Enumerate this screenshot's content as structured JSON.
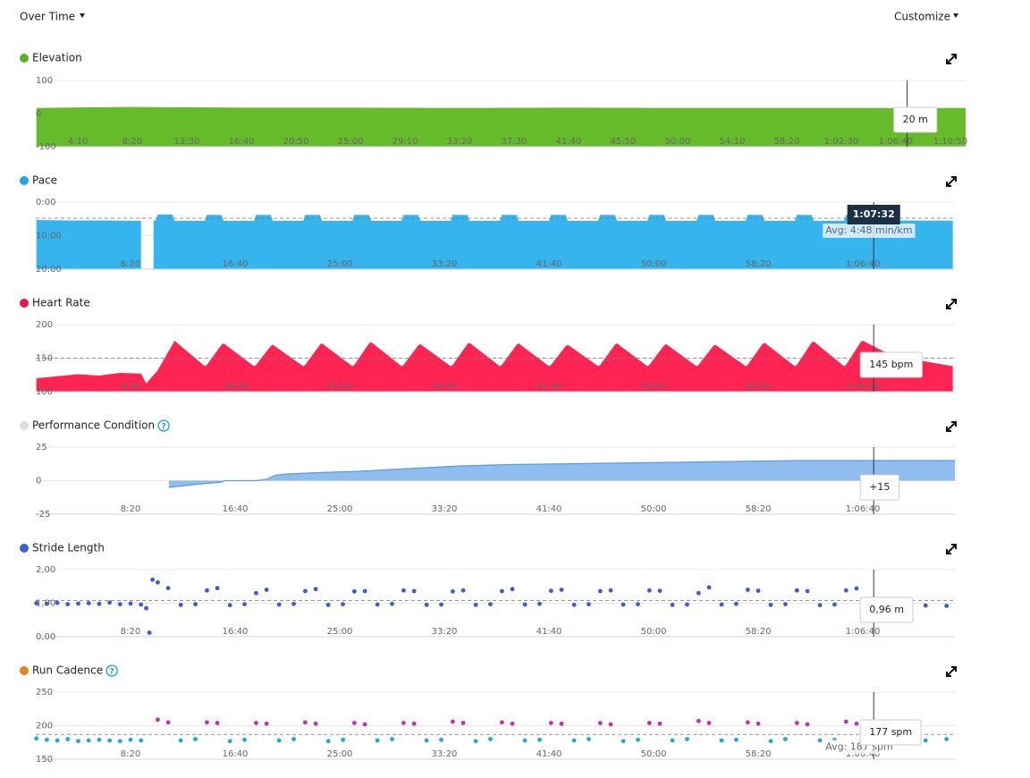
{
  "header": {
    "view": "Over Time",
    "customize": "Customize"
  },
  "hover": {
    "value": 4052,
    "label": "1:07:32"
  },
  "chart_data": [
    {
      "type": "area",
      "title": "Elevation",
      "legend_color": "#5bb02b",
      "color": "#66bb2a",
      "fill": "bottom",
      "tooltip": "20 m",
      "x": [
        60,
        300,
        500,
        1000,
        1500,
        2000,
        2500,
        3000,
        3500,
        4000,
        4320
      ],
      "values": [
        17,
        19,
        20,
        18,
        18,
        17,
        18,
        17,
        17,
        17,
        17
      ],
      "xlim": [
        57,
        4320
      ],
      "ylim": [
        -100,
        100
      ],
      "yticks": [
        -100,
        0,
        100
      ],
      "xticks": [
        {
          "value": 250,
          "label": "4:10"
        },
        {
          "value": 500,
          "label": "8:20"
        },
        {
          "value": 750,
          "label": "12:30"
        },
        {
          "value": 1000,
          "label": "16:40"
        },
        {
          "value": 1250,
          "label": "20:50"
        },
        {
          "value": 1500,
          "label": "25:00"
        },
        {
          "value": 1750,
          "label": "29:10"
        },
        {
          "value": 2000,
          "label": "33:20"
        },
        {
          "value": 2250,
          "label": "37:30"
        },
        {
          "value": 2500,
          "label": "41:40"
        },
        {
          "value": 2750,
          "label": "45:50"
        },
        {
          "value": 3000,
          "label": "50:00"
        },
        {
          "value": 3250,
          "label": "54:10"
        },
        {
          "value": 3500,
          "label": "58:20"
        },
        {
          "value": 3750,
          "label": "1:02:30"
        },
        {
          "value": 4000,
          "label": "1:06:40"
        },
        {
          "value": 4250,
          "label": "1:10:50"
        }
      ]
    },
    {
      "type": "area",
      "title": "Pace",
      "legend_color": "#1fa9e1",
      "color": "#36b4ee",
      "fill": "bottom",
      "inverted": true,
      "average": 288,
      "average_label": "Avg: 4:48 min/km",
      "x": [
        50,
        150,
        250,
        350,
        450,
        550,
        575,
        610,
        620,
        630,
        700,
        710,
        855,
        865,
        935,
        945,
        1090,
        1100,
        1170,
        1180,
        1325,
        1335,
        1405,
        1415,
        1560,
        1570,
        1640,
        1650,
        1795,
        1805,
        1875,
        1885,
        2030,
        2040,
        2110,
        2120,
        2265,
        2275,
        2345,
        2355,
        2500,
        2510,
        2580,
        2590,
        2735,
        2745,
        2815,
        2825,
        2970,
        2980,
        3050,
        3060,
        3205,
        3215,
        3285,
        3295,
        3440,
        3450,
        3520,
        3530,
        3675,
        3685,
        3755,
        3765,
        3910,
        3920,
        3990,
        4000,
        4100,
        4200,
        4300,
        4430
      ],
      "values": [
        320,
        325,
        330,
        328,
        332,
        335,
        null,
        330,
        330,
        220,
        222,
        335,
        335,
        228,
        230,
        335,
        335,
        228,
        230,
        335,
        335,
        228,
        230,
        335,
        335,
        228,
        230,
        335,
        335,
        228,
        230,
        335,
        335,
        228,
        230,
        335,
        335,
        228,
        230,
        335,
        335,
        228,
        230,
        335,
        335,
        228,
        230,
        335,
        335,
        228,
        230,
        335,
        335,
        228,
        230,
        335,
        335,
        228,
        230,
        335,
        335,
        228,
        230,
        335,
        335,
        228,
        230,
        335,
        330,
        330,
        332,
        332
      ],
      "xlim": [
        47,
        4440
      ],
      "ylim": [
        0,
        1200
      ],
      "yticks": [
        {
          "value": 0,
          "label": "0:00"
        },
        {
          "value": 600,
          "label": "10:00"
        },
        {
          "value": 1200,
          "label": "20:00"
        }
      ],
      "xticks": [
        {
          "value": 500,
          "label": "8:20"
        },
        {
          "value": 1000,
          "label": "16:40"
        },
        {
          "value": 1500,
          "label": "25:00"
        },
        {
          "value": 2000,
          "label": "33:20"
        },
        {
          "value": 2500,
          "label": "41:40"
        },
        {
          "value": 3000,
          "label": "50:00"
        },
        {
          "value": 3500,
          "label": "58:20"
        },
        {
          "value": 4000,
          "label": "1:06:40"
        }
      ]
    },
    {
      "type": "area",
      "title": "Heart Rate",
      "legend_color": "#e8194a",
      "color": "#ff2452",
      "fill": "bottom",
      "tooltip": "145 bpm",
      "average": 150,
      "x": [
        50,
        150,
        250,
        350,
        450,
        550,
        575,
        610,
        620,
        630,
        700,
        710,
        855,
        865,
        935,
        945,
        1090,
        1100,
        1170,
        1180,
        1325,
        1335,
        1405,
        1415,
        1560,
        1570,
        1640,
        1650,
        1795,
        1805,
        1875,
        1885,
        2030,
        2040,
        2110,
        2120,
        2265,
        2275,
        2345,
        2355,
        2500,
        2510,
        2580,
        2590,
        2735,
        2745,
        2815,
        2825,
        2970,
        2980,
        3050,
        3060,
        3205,
        3215,
        3285,
        3295,
        3440,
        3450,
        3520,
        3530,
        3675,
        3685,
        3755,
        3765,
        3910,
        3920,
        3990,
        4000,
        4100,
        4200,
        4300,
        4430
      ],
      "values": [
        120,
        123,
        126,
        124,
        128,
        127,
        112,
        125,
        128,
        132,
        170,
        176,
        138,
        140,
        170,
        172,
        138,
        140,
        168,
        170,
        138,
        140,
        170,
        172,
        138,
        140,
        172,
        174,
        138,
        140,
        169,
        171,
        138,
        140,
        171,
        173,
        138,
        140,
        170,
        172,
        138,
        140,
        168,
        170,
        138,
        140,
        170,
        172,
        138,
        140,
        169,
        171,
        138,
        140,
        168,
        170,
        138,
        140,
        171,
        173,
        138,
        140,
        173,
        175,
        138,
        140,
        174,
        176,
        160,
        150,
        145,
        138
      ],
      "xlim": [
        47,
        4440
      ],
      "ylim": [
        100,
        200
      ],
      "yticks": [
        100,
        150,
        200
      ],
      "xticks": [
        {
          "value": 500,
          "label": "8:20"
        },
        {
          "value": 1000,
          "label": "16:40"
        },
        {
          "value": 1500,
          "label": "25:00"
        },
        {
          "value": 2000,
          "label": "33:20"
        },
        {
          "value": 2500,
          "label": "41:40"
        },
        {
          "value": 3000,
          "label": "50:00"
        },
        {
          "value": 3500,
          "label": "58:20"
        },
        {
          "value": 4000,
          "label": "1:06:40"
        }
      ]
    },
    {
      "type": "area",
      "title": "Performance Condition",
      "help": "?",
      "legend_color": "#dddddd",
      "color": "#8ebdee",
      "line_color": "#5a9be0",
      "fill": "zero",
      "tooltip": "+15",
      "x": [
        683,
        800,
        937,
        950,
        1100,
        1150,
        1192,
        1250,
        1396,
        1595,
        1829,
        2083,
        2317,
        2783,
        3229,
        3695,
        4440
      ],
      "values": [
        -5,
        -3,
        -1,
        0,
        0,
        1,
        4,
        5,
        6,
        7,
        9,
        11,
        12,
        13,
        14,
        15,
        15
      ],
      "xlim": [
        47,
        4440
      ],
      "ylim": [
        -25,
        25
      ],
      "yticks": [
        -25,
        0,
        25
      ],
      "xticks": [
        {
          "value": 500,
          "label": "8:20"
        },
        {
          "value": 1000,
          "label": "16:40"
        },
        {
          "value": 1500,
          "label": "25:00"
        },
        {
          "value": 2000,
          "label": "33:20"
        },
        {
          "value": 2500,
          "label": "41:40"
        },
        {
          "value": 3000,
          "label": "50:00"
        },
        {
          "value": 3500,
          "label": "58:20"
        },
        {
          "value": 4000,
          "label": "1:06:40"
        }
      ]
    },
    {
      "type": "scatter",
      "title": "Stride Length",
      "legend_color": "#3c5fd8",
      "color": "#3a5dd6",
      "tooltip": "0,96 m",
      "average": 1.08,
      "x": [
        50,
        100,
        150,
        200,
        250,
        300,
        350,
        400,
        450,
        500,
        550,
        575,
        590,
        605,
        630,
        680,
        740,
        810,
        865,
        915,
        975,
        1045,
        1100,
        1150,
        1210,
        1280,
        1335,
        1385,
        1445,
        1515,
        1570,
        1620,
        1680,
        1750,
        1805,
        1855,
        1915,
        1985,
        2040,
        2090,
        2150,
        2220,
        2275,
        2325,
        2385,
        2455,
        2510,
        2560,
        2620,
        2690,
        2745,
        2795,
        2855,
        2925,
        2980,
        3030,
        3090,
        3160,
        3215,
        3265,
        3325,
        3395,
        3450,
        3500,
        3560,
        3630,
        3685,
        3735,
        3795,
        3865,
        3920,
        3970,
        4030,
        4100,
        4200,
        4300,
        4400
      ],
      "values": [
        1.0,
        0.98,
        1.01,
        0.97,
        0.99,
        1.0,
        0.98,
        1.02,
        0.97,
        0.99,
        0.96,
        0.85,
        0.12,
        1.7,
        1.62,
        1.45,
        0.95,
        0.97,
        1.38,
        1.45,
        0.94,
        0.97,
        1.3,
        1.4,
        0.96,
        0.98,
        1.36,
        1.42,
        0.95,
        0.97,
        1.35,
        1.36,
        0.96,
        0.98,
        1.38,
        1.36,
        0.95,
        0.96,
        1.35,
        1.38,
        0.95,
        0.97,
        1.36,
        1.42,
        0.96,
        0.98,
        1.37,
        1.4,
        0.95,
        0.97,
        1.36,
        1.38,
        0.96,
        0.97,
        1.38,
        1.37,
        0.95,
        0.96,
        1.3,
        1.47,
        0.96,
        0.98,
        1.4,
        1.37,
        0.95,
        0.97,
        1.38,
        1.36,
        0.94,
        0.96,
        1.38,
        1.44,
        0.9,
        0.93,
        0.94,
        0.93,
        0.92
      ],
      "xlim": [
        47,
        4440
      ],
      "ylim": [
        0,
        2
      ],
      "yticks": [
        {
          "value": 0,
          "label": "0,00"
        },
        {
          "value": 1,
          "label": "1,00"
        },
        {
          "value": 2,
          "label": "2,00"
        }
      ],
      "xticks": [
        {
          "value": 500,
          "label": "8:20"
        },
        {
          "value": 1000,
          "label": "16:40"
        },
        {
          "value": 1500,
          "label": "25:00"
        },
        {
          "value": 2000,
          "label": "33:20"
        },
        {
          "value": 2500,
          "label": "41:40"
        },
        {
          "value": 3000,
          "label": "50:00"
        },
        {
          "value": 3500,
          "label": "58:20"
        },
        {
          "value": 4000,
          "label": "1:06:40"
        }
      ]
    },
    {
      "type": "scatter",
      "title": "Run Cadence",
      "help": "?",
      "legend_color": "#e8821a",
      "tooltip": "177 spm",
      "average": 187,
      "average_label": "Avg: 187 spm",
      "series": [
        {
          "color": "#1fa8e0",
          "x": [
            50,
            100,
            150,
            200,
            250,
            300,
            350,
            400,
            450,
            500,
            550,
            740,
            810,
            975,
            1045,
            1210,
            1280,
            1445,
            1515,
            1680,
            1750,
            1915,
            1985,
            2150,
            2220,
            2385,
            2455,
            2620,
            2690,
            2855,
            2925,
            3090,
            3160,
            3325,
            3395,
            3560,
            3630,
            3795,
            3865,
            4030,
            4100,
            4200,
            4300,
            4400
          ],
          "values": [
            181,
            179,
            178,
            180,
            177,
            178,
            179,
            178,
            177,
            179,
            178,
            178,
            180,
            177,
            179,
            178,
            180,
            177,
            179,
            178,
            180,
            178,
            179,
            177,
            180,
            178,
            179,
            178,
            180,
            177,
            179,
            178,
            180,
            178,
            179,
            177,
            180,
            178,
            179,
            178,
            180,
            179,
            178,
            180
          ]
        },
        {
          "color": "#c12fbb",
          "x": [
            630,
            680,
            865,
            915,
            1100,
            1150,
            1335,
            1385,
            1570,
            1620,
            1805,
            1855,
            2040,
            2090,
            2275,
            2325,
            2510,
            2560,
            2745,
            2795,
            2980,
            3030,
            3215,
            3265,
            3450,
            3500,
            3685,
            3735,
            3920,
            3970
          ],
          "values": [
            209,
            205,
            205,
            204,
            204,
            203,
            205,
            203,
            204,
            202,
            204,
            203,
            206,
            204,
            205,
            203,
            204,
            203,
            204,
            202,
            204,
            203,
            207,
            204,
            205,
            203,
            204,
            202,
            206,
            203
          ]
        }
      ],
      "xlim": [
        47,
        4440
      ],
      "ylim": [
        150,
        250
      ],
      "yticks": [
        150,
        200,
        250
      ],
      "xticks": [
        {
          "value": 500,
          "label": "8:20"
        },
        {
          "value": 1000,
          "label": "16:40"
        },
        {
          "value": 1500,
          "label": "25:00"
        },
        {
          "value": 2000,
          "label": "33:20"
        },
        {
          "value": 2500,
          "label": "41:40"
        },
        {
          "value": 3000,
          "label": "50:00"
        },
        {
          "value": 3500,
          "label": "58:20"
        },
        {
          "value": 4000,
          "label": "1:06:40"
        }
      ]
    }
  ]
}
